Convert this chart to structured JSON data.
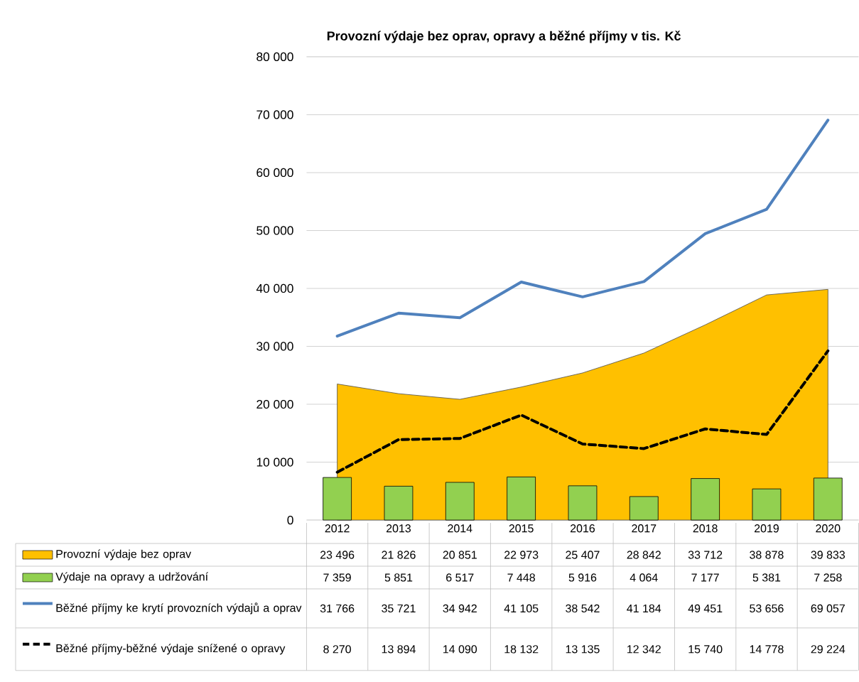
{
  "chart_data": {
    "type": "line",
    "title": "Provozní výdaje bez oprav, opravy a běžné příjmy v tis. Kč",
    "categories": [
      "2012",
      "2013",
      "2014",
      "2015",
      "2016",
      "2017",
      "2018",
      "2019",
      "2020"
    ],
    "series": [
      {
        "name": "Provozní výdaje bez oprav",
        "type": "area",
        "color": "#ffc000",
        "values": [
          23496,
          21826,
          20851,
          22973,
          25407,
          28842,
          33712,
          38878,
          39833
        ]
      },
      {
        "name": "Výdaje na opravy a udržování",
        "type": "bar",
        "color": "#92d050",
        "values": [
          7359,
          5851,
          6517,
          7448,
          5916,
          4064,
          7177,
          5381,
          7258
        ]
      },
      {
        "name": "Běžné příjmy ke krytí provozních výdajů a oprav",
        "color": "#4f81bd",
        "values": [
          31766,
          35721,
          34942,
          41105,
          38542,
          41184,
          49451,
          53656,
          69057
        ]
      },
      {
        "name": "Běžné příjmy-běžné výdaje snížené o opravy",
        "color": "#000000",
        "line_style": "dashed",
        "values": [
          8270,
          13894,
          14090,
          18132,
          13135,
          12342,
          15740,
          14778,
          29224
        ]
      }
    ],
    "ylim": [
      0,
      80000
    ],
    "yticks": [
      {
        "value": 0,
        "label": "0"
      },
      {
        "value": 10000,
        "label": "10 000"
      },
      {
        "value": 20000,
        "label": "20 000"
      },
      {
        "value": 30000,
        "label": "30 000"
      },
      {
        "value": 40000,
        "label": "40 000"
      },
      {
        "value": 50000,
        "label": "50 000"
      },
      {
        "value": 60000,
        "label": "60 000"
      },
      {
        "value": 70000,
        "label": "70 000"
      },
      {
        "value": 80000,
        "label": "80 000"
      }
    ],
    "grid": "y",
    "legend": "bottom",
    "data_labels": true
  }
}
